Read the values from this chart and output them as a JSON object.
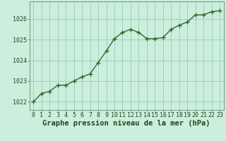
{
  "x": [
    0,
    1,
    2,
    3,
    4,
    5,
    6,
    7,
    8,
    9,
    10,
    11,
    12,
    13,
    14,
    15,
    16,
    17,
    18,
    19,
    20,
    21,
    22,
    23
  ],
  "y": [
    1022.0,
    1022.4,
    1022.5,
    1022.8,
    1022.8,
    1023.0,
    1023.2,
    1023.35,
    1023.9,
    1024.45,
    1025.05,
    1025.35,
    1025.5,
    1025.35,
    1025.05,
    1025.05,
    1025.1,
    1025.5,
    1025.7,
    1025.85,
    1026.2,
    1026.2,
    1026.35,
    1026.4
  ],
  "line_color": "#2d6a2d",
  "marker": "+",
  "marker_size": 4,
  "line_width": 1.0,
  "bg_color": "#cceedd",
  "grid_color": "#99ccbb",
  "xlabel": "Graphe pression niveau de la mer (hPa)",
  "xlabel_fontsize": 7.5,
  "xlabel_color": "#1a4a1a",
  "ylabel_ticks": [
    1022,
    1023,
    1024,
    1025,
    1026
  ],
  "ylim": [
    1021.6,
    1026.85
  ],
  "xlim": [
    -0.5,
    23.5
  ],
  "tick_fontsize": 6.0,
  "tick_color": "#1a4a1a",
  "spine_color": "#669988"
}
